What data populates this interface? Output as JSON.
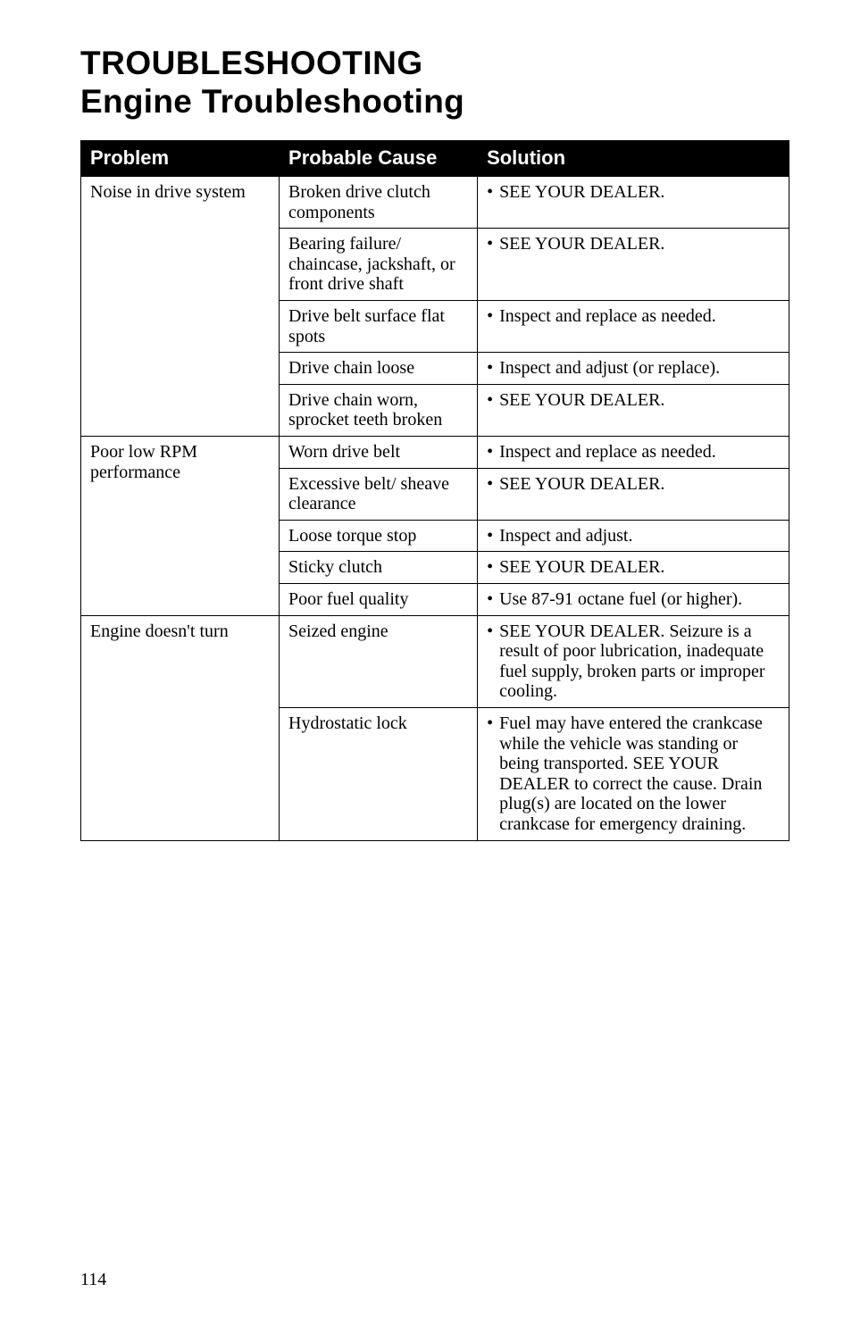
{
  "title": "TROUBLESHOOTING",
  "subtitle": "Engine Troubleshooting",
  "pageNumber": "114",
  "colWidths": [
    "28%",
    "28%",
    "44%"
  ],
  "table": {
    "headers": [
      "Problem",
      "Probable Cause",
      "Solution"
    ],
    "groups": [
      {
        "problem": "Noise in drive system",
        "rows": [
          {
            "cause": "Broken drive clutch components",
            "solution": "SEE YOUR DEALER."
          },
          {
            "cause": "Bearing failure/ chaincase, jackshaft, or front drive shaft",
            "solution": "SEE YOUR DEALER."
          },
          {
            "cause": "Drive belt surface flat spots",
            "solution": "Inspect and replace as needed."
          },
          {
            "cause": "Drive chain loose",
            "solution": "Inspect and adjust (or replace)."
          },
          {
            "cause": "Drive chain worn, sprocket teeth broken",
            "solution": "SEE YOUR DEALER."
          }
        ]
      },
      {
        "problem": "Poor low RPM performance",
        "rows": [
          {
            "cause": "Worn drive belt",
            "solution": "Inspect and replace as needed."
          },
          {
            "cause": "Excessive belt/ sheave clearance",
            "solution": "SEE YOUR DEALER."
          },
          {
            "cause": "Loose torque stop",
            "solution": "Inspect and adjust."
          },
          {
            "cause": "Sticky clutch",
            "solution": "SEE YOUR DEALER."
          },
          {
            "cause": "Poor fuel quality",
            "solution": "Use 87-91 octane fuel (or higher)."
          }
        ]
      },
      {
        "problem": "Engine doesn't turn",
        "rows": [
          {
            "cause": "Seized engine",
            "solution": "SEE YOUR DEALER.  Seizure is a result of poor lubrication, inadequate fuel supply, broken parts or improper cooling."
          },
          {
            "cause": "Hydrostatic lock",
            "solution": "Fuel may have entered the crankcase while the vehicle was standing or being transported.  SEE YOUR DEALER to correct the cause.  Drain plug(s) are located on the lower crankcase for emergency draining."
          }
        ]
      }
    ]
  }
}
